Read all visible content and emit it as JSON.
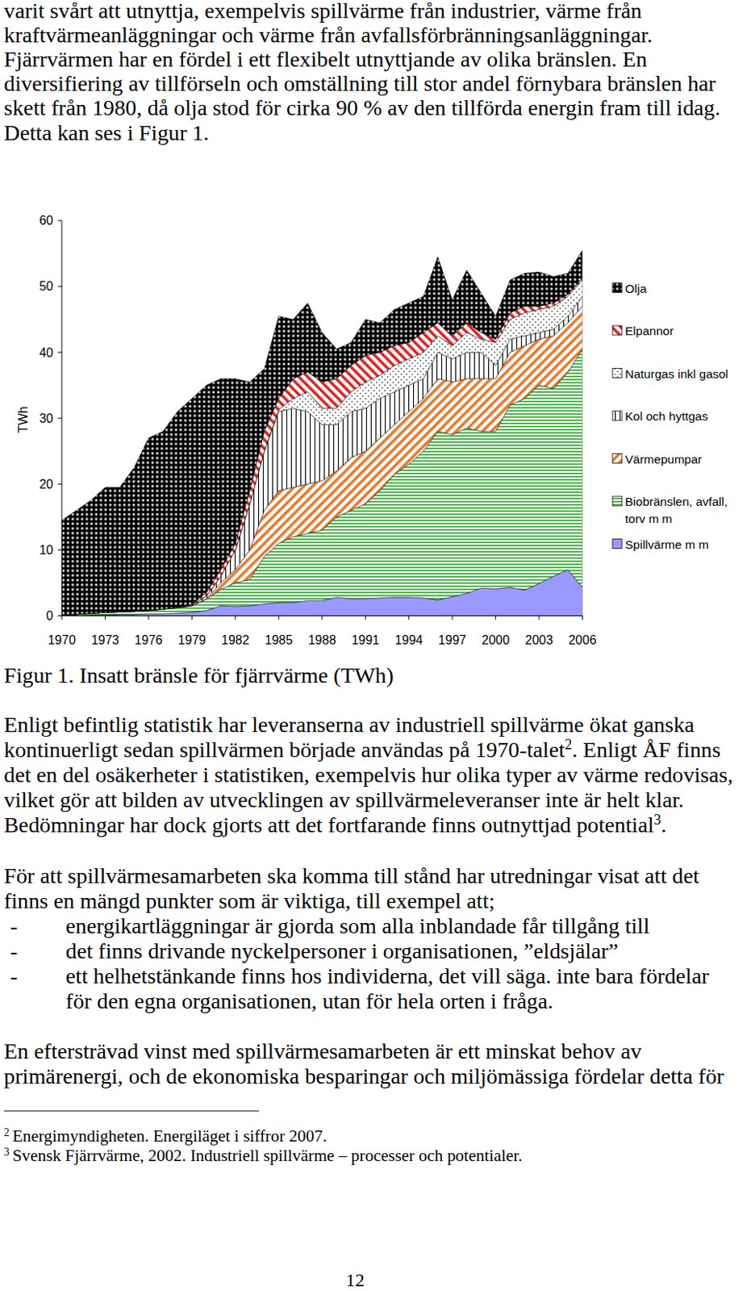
{
  "intro": [
    "varit svårt att utnyttja, exempelvis spillvärme från industrier, värme från",
    "kraftvärmeanläggningar och värme från avfallsförbränningsanläggningar.",
    "Fjärrvärmen har en fördel i ett flexibelt utnyttjande av olika bränslen. En",
    "diversifiering av tillförseln och omställning till stor andel förnybara bränslen har",
    "skett från 1980, då olja stod för cirka 90 % av den tillförda energin fram till idag.",
    "Detta kan ses i Figur 1."
  ],
  "chart_data": {
    "type": "area",
    "stacked": true,
    "legend": "right",
    "y_label": "TWh",
    "x": [
      1970,
      1971,
      1972,
      1973,
      1974,
      1975,
      1976,
      1977,
      1978,
      1979,
      1980,
      1981,
      1982,
      1983,
      1984,
      1985,
      1986,
      1987,
      1988,
      1989,
      1990,
      1991,
      1992,
      1993,
      1994,
      1995,
      1996,
      1997,
      1998,
      1999,
      2000,
      2001,
      2002,
      2003,
      2004,
      2005,
      2006
    ],
    "xlim": [
      1970,
      2006
    ],
    "xticks": [
      1970,
      1973,
      1976,
      1979,
      1982,
      1985,
      1988,
      1991,
      1994,
      1997,
      2000,
      2003,
      2006
    ],
    "ylim": [
      0,
      60
    ],
    "yticks": [
      0,
      10,
      20,
      30,
      40,
      50,
      60
    ],
    "series": [
      {
        "name": "Spillvärme m m",
        "color": "#9999ff",
        "values": [
          0,
          0,
          0.1,
          0.1,
          0.2,
          0.2,
          0.3,
          0.3,
          0.4,
          0.5,
          0.8,
          1.5,
          1.4,
          1.5,
          1.8,
          2.0,
          2.0,
          2.3,
          2.3,
          2.8,
          2.6,
          2.6,
          2.7,
          2.8,
          2.8,
          2.7,
          2.4,
          2.9,
          3.4,
          4.2,
          4.1,
          4.3,
          3.9,
          4.9,
          6.0,
          7.0,
          4.3
        ]
      },
      {
        "name": "Biobränslen, avfall, torv m m",
        "color": "#22aa22",
        "values": [
          0.1,
          0.2,
          0.3,
          0.4,
          0.4,
          0.5,
          0.5,
          0.7,
          0.8,
          1.0,
          1.7,
          2.5,
          3.6,
          4.0,
          7.2,
          9.0,
          10.0,
          10.2,
          10.7,
          12.2,
          13.4,
          14.4,
          16.3,
          18.7,
          20.2,
          22.3,
          25.6,
          24.6,
          25.1,
          23.8,
          23.9,
          27.7,
          29.1,
          30.1,
          28.5,
          30.0,
          36.2
        ]
      },
      {
        "name": "Värmepumpar",
        "color": "#e8782a",
        "values": [
          0,
          0,
          0,
          0,
          0,
          0,
          0,
          0,
          0,
          0,
          0.1,
          1.0,
          2.0,
          4.5,
          7.0,
          8.0,
          7.5,
          7.5,
          7.5,
          7.0,
          8.0,
          8.0,
          8.0,
          7.5,
          8.0,
          8.0,
          8.0,
          8.0,
          7.5,
          8.0,
          8.0,
          8.0,
          8.0,
          7.0,
          8.0,
          7.5,
          6.5
        ]
      },
      {
        "name": "Kol och hyttgas",
        "color": "#000000",
        "values": [
          0,
          0,
          0,
          0,
          0,
          0,
          0,
          0,
          0.1,
          0.1,
          0.4,
          1.0,
          3.0,
          7.0,
          9.0,
          12.0,
          12.0,
          11.0,
          8.5,
          7.0,
          7.0,
          6.5,
          6.0,
          5.0,
          4.0,
          3.0,
          4.0,
          3.5,
          4.0,
          4.0,
          2.0,
          2.0,
          1.5,
          1.0,
          1.0,
          1.0,
          1.5
        ]
      },
      {
        "name": "Naturgas inkl gasol",
        "color": "#000000",
        "values": [
          0,
          0,
          0,
          0,
          0,
          0,
          0,
          0,
          0,
          0,
          0,
          0,
          0,
          0,
          0,
          0.3,
          1.5,
          3.0,
          2.5,
          2.5,
          3.0,
          4.0,
          3.5,
          4.0,
          4.0,
          4.0,
          2.5,
          2.0,
          3.0,
          2.0,
          3.5,
          3.0,
          3.5,
          3.5,
          3.5,
          3.0,
          2.5
        ]
      },
      {
        "name": "Elpannor",
        "color": "#e02020",
        "values": [
          0,
          0,
          0,
          0,
          0,
          0,
          0,
          0,
          0,
          0.1,
          0.5,
          1.0,
          1.0,
          2.0,
          3.0,
          1.7,
          3.0,
          3.0,
          4.0,
          4.5,
          4.0,
          4.0,
          3.5,
          3.0,
          2.5,
          3.0,
          2.0,
          1.5,
          1.5,
          1.0,
          0.5,
          1.0,
          1.0,
          0.5,
          0.5,
          0.3,
          0.3
        ]
      },
      {
        "name": "Olja",
        "color": "#000000",
        "values": [
          14.4,
          15.8,
          17.1,
          19.0,
          18.9,
          21.8,
          26.2,
          27.0,
          29.7,
          31.3,
          31.5,
          29.0,
          25.0,
          16.5,
          9.5,
          12.5,
          9.0,
          10.5,
          7.5,
          4.5,
          3.5,
          5.5,
          4.5,
          5.5,
          6.0,
          5.5,
          10.0,
          5.5,
          8.0,
          6.0,
          3.5,
          5.0,
          5.0,
          5.2,
          4.0,
          3.2,
          4.2
        ]
      }
    ]
  },
  "caption": "Figur 1. Insatt bränsle för fjärrvärme (TWh)",
  "body": [
    {
      "lines": [
        "Enligt befintlig statistik har leveranserna av industriell spillvärme ökat ganska",
        [
          "kontinuerligt sedan spillvärmen började användas på 1970-talet",
          {
            "sup": "2"
          },
          ". Enligt ÅF finns"
        ],
        "det en del osäkerheter i statistiken, exempelvis hur olika typer av värme redovisas,",
        "vilket gör att bilden av utvecklingen av spillvärmeleveranser inte är helt klar.",
        [
          "Bedömningar har dock gjorts att det fortfarande finns outnyttjad potential",
          {
            "sup": "3"
          },
          "."
        ]
      ]
    },
    {
      "lines": [
        "För att spillvärmesamarbeten ska komma till stånd har utredningar visat att det",
        "finns en mängd punkter som är viktiga, till exempel att;"
      ]
    },
    {
      "marker": "-",
      "lines": [
        "energikartläggningar är gjorda som alla inblandade får tillgång till"
      ]
    },
    {
      "marker": "-",
      "lines": [
        "det finns drivande nyckelpersoner i organisationen, ”eldsjälar”"
      ]
    },
    {
      "marker": "-",
      "lines": [
        "ett helhetstänkande finns hos individerna, det vill säga. inte bara fördelar",
        "för den egna organisationen, utan för hela orten i fråga."
      ]
    },
    {
      "lines": [
        "En eftersträvad vinst med spillvärmesamarbeten är ett minskat behov av",
        "primärenergi, och de ekonomiska besparingar och miljömässiga fördelar detta för"
      ]
    }
  ],
  "footnotes": [
    {
      "number": "2",
      "text": "Energimyndigheten. Energiläget i siffror 2007."
    },
    {
      "number": "3",
      "text": "Svensk Fjärrvärme, 2002. Industriell spillvärme – processer och potentialer."
    }
  ],
  "page_number": "12"
}
